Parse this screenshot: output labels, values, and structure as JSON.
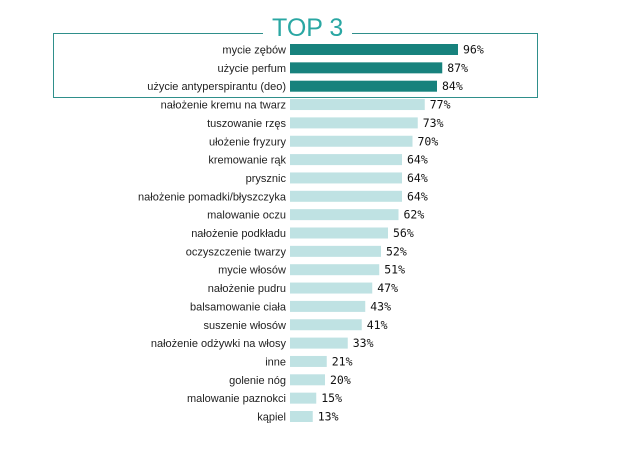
{
  "header": {
    "title": "TOP 3"
  },
  "colors": {
    "top_bar": "#17827d",
    "regular_bar": "#bfe2e3",
    "frame": "#2f8f8b",
    "title": "#2aa7a3"
  },
  "chart_data": {
    "type": "bar",
    "orientation": "horizontal",
    "title": "TOP 3",
    "highlighted_count": 3,
    "value_suffix": "%",
    "categories": [
      "mycie zębów",
      "użycie perfum",
      "użycie antyperspirantu (deo)",
      "nałożenie kremu na twarz",
      "tuszowanie rzęs",
      "ułożenie fryzury",
      "kremowanie rąk",
      "prysznic",
      "nałożenie pomadki/błyszczyka",
      "malowanie oczu",
      "nałożenie podkładu",
      "oczyszczenie twarzy",
      "mycie włosów",
      "nałożenie pudru",
      "balsamowanie ciała",
      "suszenie włosów",
      "nałożenie odżywki na włosy",
      "inne",
      "golenie nóg",
      "malowanie paznokci",
      "kąpiel"
    ],
    "values": [
      96,
      87,
      84,
      77,
      73,
      70,
      64,
      64,
      64,
      62,
      56,
      52,
      51,
      47,
      43,
      41,
      33,
      21,
      20,
      15,
      13
    ],
    "value_labels": [
      "96%",
      "87%",
      "84%",
      "77%",
      "73%",
      "70%",
      "64%",
      "64%",
      "64%",
      "62%",
      "56%",
      "52%",
      "51%",
      "47%",
      "43%",
      "41%",
      "33%",
      "21%",
      "20%",
      "15%",
      "13%"
    ],
    "xlim": [
      0,
      100
    ],
    "grid": false,
    "legend": "none"
  }
}
